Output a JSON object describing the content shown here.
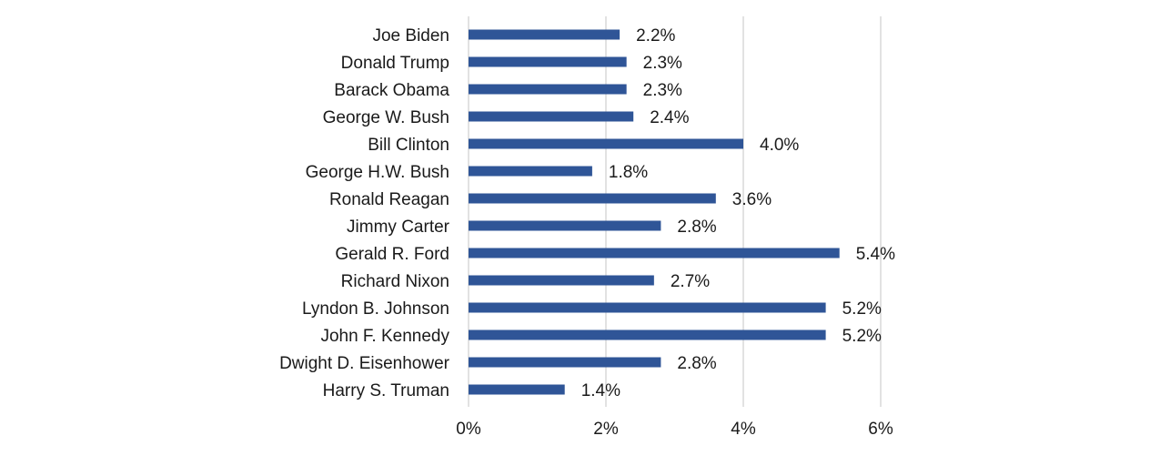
{
  "chart_data": {
    "type": "bar",
    "orientation": "horizontal",
    "categories": [
      "Joe Biden",
      "Donald Trump",
      "Barack Obama",
      "George W. Bush",
      "Bill Clinton",
      "George H.W. Bush",
      "Ronald Reagan",
      "Jimmy Carter",
      "Gerald R. Ford",
      "Richard Nixon",
      "Lyndon B. Johnson",
      "John F. Kennedy",
      "Dwight D. Eisenhower",
      "Harry S. Truman"
    ],
    "values": [
      2.2,
      2.3,
      2.3,
      2.4,
      4.0,
      1.8,
      3.6,
      2.8,
      5.4,
      2.7,
      5.2,
      5.2,
      2.8,
      1.4
    ],
    "value_labels": [
      "2.2%",
      "2.3%",
      "2.3%",
      "2.4%",
      "4.0%",
      "1.8%",
      "3.6%",
      "2.8%",
      "5.4%",
      "2.7%",
      "5.2%",
      "5.2%",
      "2.8%",
      "1.4%"
    ],
    "xlim": [
      0,
      6
    ],
    "xticks": [
      0,
      2,
      4,
      6
    ],
    "xtick_labels": [
      "0%",
      "2%",
      "4%",
      "6%"
    ],
    "grid": true,
    "bar_color": "#2f5597",
    "grid_color": "#d9d9d9"
  }
}
